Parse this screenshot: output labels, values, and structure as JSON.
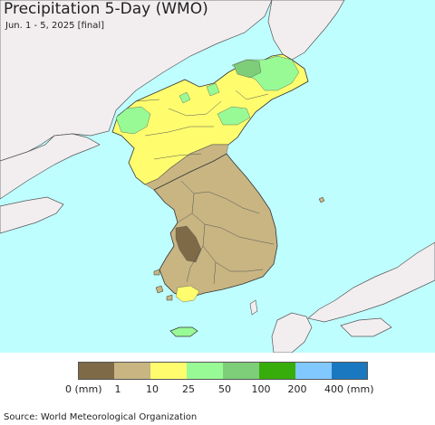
{
  "title": "Precipitation 5-Day (WMO)",
  "subtitle": "Jun. 1 - 5, 2025 [final]",
  "source": "Source: World Meteorological Organization",
  "colors": {
    "ocean": "#bffeff",
    "land_other": "#f2eef0",
    "dry_dark": "#7f6a48",
    "dry": "#c8b582",
    "light": "#fffd6e",
    "green_light": "#98fa95",
    "green_mid": "#7ece79",
    "border": "#333333"
  },
  "legend": {
    "swatches": [
      {
        "color": "#7f6a48"
      },
      {
        "color": "#c8b582"
      },
      {
        "color": "#fffd6e"
      },
      {
        "color": "#98fa95"
      },
      {
        "color": "#7ece79"
      },
      {
        "color": "#36ad0b"
      },
      {
        "color": "#81c8ff"
      },
      {
        "color": "#1a78c0"
      }
    ],
    "ticks": [
      "0 (mm)",
      "1",
      "10",
      "25",
      "50",
      "100",
      "200",
      "400 (mm)"
    ]
  }
}
